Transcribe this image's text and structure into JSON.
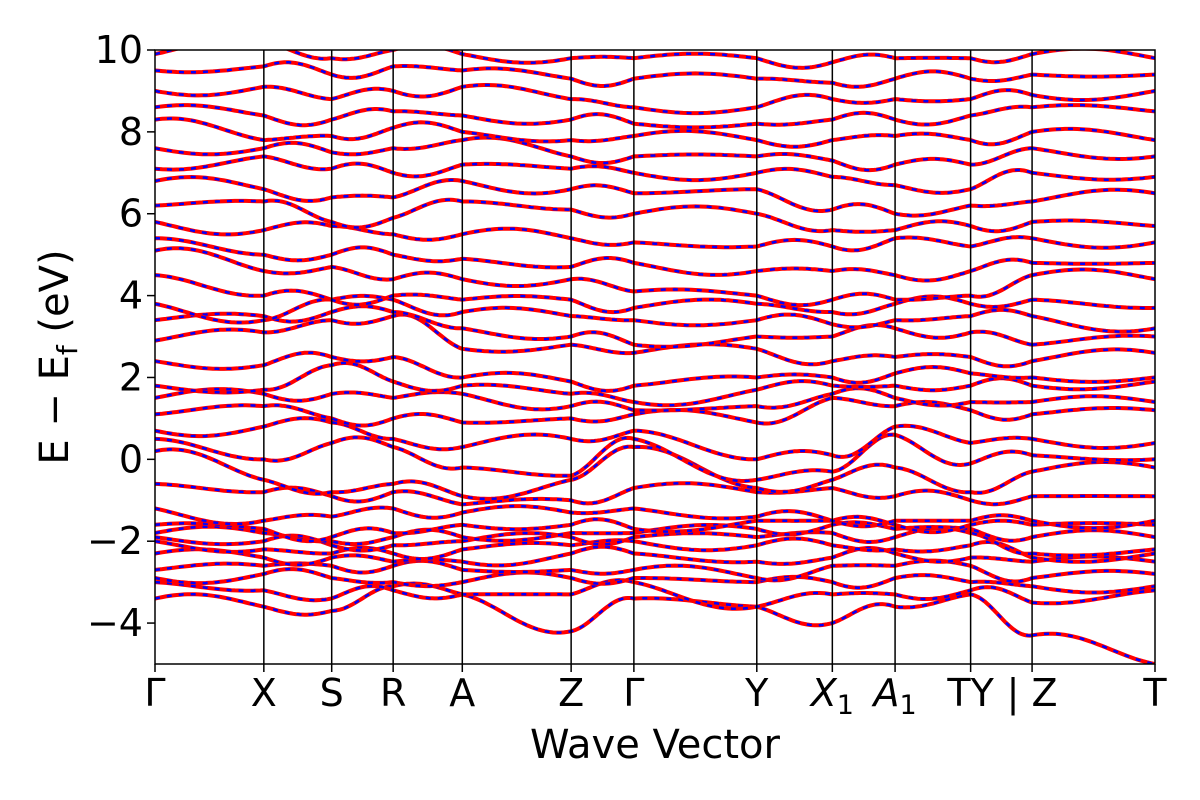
{
  "chart_data": {
    "type": "line",
    "title": "",
    "xlabel": "Wave Vector",
    "ylabel_parts": {
      "main": "E − E",
      "sub": "f",
      "unit": " (eV)"
    },
    "ylim": [
      -5,
      10
    ],
    "yticks": [
      -4,
      -2,
      0,
      2,
      4,
      6,
      8,
      10
    ],
    "ytick_labels": [
      "−4",
      "−2",
      "0",
      "2",
      "4",
      "6",
      "8",
      "10"
    ],
    "grid": false,
    "legend": "none",
    "x_label_positions": [
      0,
      0.85,
      1.38,
      1.86,
      2.4,
      3.25,
      3.74,
      4.7,
      5.29,
      5.78,
      6.37,
      6.85,
      7.81
    ],
    "k_labels": [
      "Γ",
      "X",
      "S",
      "R",
      "A",
      "Z",
      "Γ",
      "Y",
      "X1",
      "A1",
      "T",
      "Y | Z",
      "T"
    ],
    "k_label_display": [
      {
        "text": "Γ"
      },
      {
        "text": "X"
      },
      {
        "text": "S"
      },
      {
        "text": "R"
      },
      {
        "text": "A"
      },
      {
        "text": "Z"
      },
      {
        "text": "Γ"
      },
      {
        "text": "Y"
      },
      {
        "text": "X",
        "sub": "1",
        "italic": true
      },
      {
        "text": "A",
        "sub": "1",
        "italic": true
      },
      {
        "text": "TY"
      },
      {
        "text": "| Z"
      },
      {
        "text": "T"
      }
    ],
    "segment_breaks": [
      0,
      0.85,
      1.38,
      1.86,
      2.4,
      3.25,
      3.74,
      4.7,
      5.29,
      5.78,
      6.37,
      6.85,
      7.81
    ],
    "discontinuity_at": 6.85,
    "series": [
      {
        "color": "#ff0000",
        "style": "solid"
      },
      {
        "color": "#0000ff",
        "style": "dashed"
      }
    ],
    "bands_at_nodes": [
      [
        -3.4,
        -3.6,
        -3.7,
        -3.1,
        -3.3,
        -4.2,
        -3.4,
        -3.6,
        -4.0,
        -3.6,
        -3.3,
        -4.3,
        -5.0
      ],
      [
        -3.0,
        -3.2,
        -3.4,
        -3.2,
        -3.3,
        -3.3,
        -3.0,
        -3.6,
        -3.3,
        -3.3,
        -3.2,
        -3.5,
        -3.2
      ],
      [
        -2.9,
        -2.8,
        -2.9,
        -3.0,
        -3.0,
        -2.9,
        -2.9,
        -3.0,
        -3.0,
        -2.9,
        -3.0,
        -3.1,
        -3.1
      ],
      [
        -2.7,
        -2.6,
        -2.6,
        -2.6,
        -2.7,
        -2.7,
        -2.7,
        -2.9,
        -2.6,
        -2.6,
        -2.6,
        -2.9,
        -2.8
      ],
      [
        -2.3,
        -2.4,
        -2.4,
        -2.5,
        -2.5,
        -2.3,
        -2.3,
        -2.5,
        -2.4,
        -2.3,
        -2.4,
        -2.5,
        -2.5
      ],
      [
        -2.0,
        -2.2,
        -2.3,
        -2.3,
        -2.2,
        -2.1,
        -2.0,
        -2.1,
        -2.1,
        -2.2,
        -2.1,
        -2.4,
        -2.3
      ],
      [
        -1.9,
        -2.0,
        -2.1,
        -2.1,
        -2.0,
        -1.9,
        -1.9,
        -1.9,
        -1.8,
        -1.9,
        -1.8,
        -2.3,
        -2.2
      ],
      [
        -1.8,
        -1.8,
        -2.0,
        -1.9,
        -1.9,
        -1.8,
        -1.8,
        -1.7,
        -1.6,
        -1.7,
        -1.7,
        -1.9,
        -1.9
      ],
      [
        -1.6,
        -1.7,
        -1.9,
        -1.8,
        -1.6,
        -1.6,
        -1.7,
        -1.5,
        -1.5,
        -1.6,
        -1.6,
        -1.6,
        -1.6
      ],
      [
        -1.2,
        -1.5,
        -1.4,
        -1.2,
        -1.3,
        -1.3,
        -1.2,
        -1.4,
        -1.5,
        -1.5,
        -1.5,
        -1.5,
        -1.5
      ],
      [
        -0.6,
        -0.8,
        -0.9,
        -0.8,
        -1.1,
        -1.0,
        -0.7,
        -0.8,
        -0.7,
        -0.9,
        -1.0,
        -0.9,
        -0.9
      ],
      [
        0.2,
        -0.5,
        -0.8,
        -0.6,
        -0.9,
        -0.5,
        0.3,
        -0.7,
        -0.5,
        -0.2,
        -0.8,
        -0.3,
        -0.2
      ],
      [
        0.5,
        0.0,
        0.4,
        0.3,
        -0.2,
        -0.4,
        0.5,
        -0.5,
        -0.3,
        0.6,
        -0.1,
        0.1,
        0.0
      ],
      [
        0.7,
        0.8,
        0.9,
        0.5,
        0.3,
        0.5,
        0.7,
        0.0,
        0.1,
        0.8,
        0.4,
        0.5,
        0.4
      ],
      [
        1.1,
        1.3,
        1.0,
        1.0,
        0.9,
        1.0,
        1.1,
        0.9,
        1.5,
        1.3,
        1.2,
        1.1,
        1.2
      ],
      [
        1.5,
        1.6,
        1.6,
        1.5,
        1.6,
        1.3,
        1.2,
        1.3,
        1.6,
        1.5,
        1.4,
        1.4,
        1.4
      ],
      [
        1.8,
        1.7,
        2.3,
        1.9,
        1.8,
        1.6,
        1.4,
        1.7,
        1.8,
        1.8,
        1.8,
        1.8,
        1.9
      ],
      [
        2.4,
        2.3,
        2.5,
        2.5,
        2.0,
        1.9,
        1.8,
        2.0,
        2.0,
        2.1,
        2.1,
        2.0,
        2.0
      ],
      [
        2.9,
        3.1,
        3.4,
        3.5,
        2.7,
        2.8,
        2.6,
        2.7,
        2.4,
        2.5,
        2.5,
        2.4,
        2.6
      ],
      [
        3.4,
        3.5,
        3.6,
        3.6,
        3.2,
        3.0,
        2.8,
        3.0,
        3.0,
        3.2,
        3.1,
        2.8,
        3.0
      ],
      [
        3.8,
        3.4,
        3.9,
        3.9,
        3.6,
        3.5,
        3.4,
        3.4,
        3.3,
        3.4,
        3.5,
        3.5,
        3.2
      ],
      [
        4.5,
        4.0,
        3.9,
        4.0,
        3.9,
        3.9,
        3.7,
        3.8,
        3.6,
        3.8,
        3.8,
        3.9,
        3.7
      ],
      [
        5.1,
        4.6,
        4.7,
        4.4,
        4.4,
        4.4,
        4.1,
        4.0,
        3.9,
        3.9,
        4.0,
        4.5,
        4.4
      ],
      [
        5.4,
        5.0,
        5.0,
        5.0,
        4.9,
        4.7,
        4.8,
        4.6,
        4.6,
        4.5,
        4.6,
        4.8,
        4.8
      ],
      [
        5.8,
        5.6,
        5.7,
        5.5,
        5.5,
        5.4,
        5.3,
        5.2,
        5.2,
        5.4,
        5.2,
        5.4,
        5.3
      ],
      [
        6.2,
        6.3,
        5.8,
        5.9,
        6.3,
        6.1,
        6.0,
        6.0,
        5.6,
        5.6,
        5.7,
        5.8,
        5.7
      ],
      [
        6.8,
        6.6,
        6.4,
        6.4,
        6.8,
        6.6,
        6.5,
        6.6,
        6.1,
        6.0,
        6.2,
        6.3,
        6.5
      ],
      [
        7.1,
        7.4,
        7.1,
        7.0,
        7.2,
        7.1,
        7.0,
        7.0,
        6.9,
        6.7,
        6.6,
        7.0,
        6.9
      ],
      [
        7.6,
        7.6,
        7.5,
        7.6,
        7.8,
        7.4,
        7.4,
        7.4,
        7.3,
        7.2,
        7.2,
        7.6,
        7.4
      ],
      [
        8.3,
        7.8,
        7.9,
        8.1,
        8.0,
        7.8,
        7.9,
        7.8,
        7.8,
        7.9,
        7.8,
        8.0,
        7.8
      ],
      [
        8.6,
        8.4,
        8.3,
        8.5,
        8.4,
        8.3,
        8.2,
        8.2,
        8.3,
        8.3,
        8.4,
        8.6,
        8.5
      ],
      [
        9.0,
        9.1,
        8.8,
        9.0,
        9.1,
        8.8,
        8.6,
        8.6,
        8.8,
        8.8,
        8.8,
        8.9,
        9.0
      ],
      [
        9.5,
        9.6,
        9.4,
        9.6,
        9.5,
        9.3,
        9.3,
        9.3,
        9.2,
        9.3,
        9.3,
        9.4,
        9.4
      ],
      [
        9.9,
        10.2,
        9.8,
        10.0,
        9.9,
        9.8,
        9.8,
        9.8,
        9.7,
        9.8,
        9.8,
        9.9,
        9.8
      ]
    ]
  }
}
